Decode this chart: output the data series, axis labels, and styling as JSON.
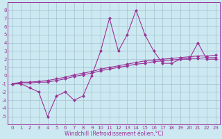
{
  "xlabel": "Windchill (Refroidissement éolien,°C)",
  "x_values": [
    0,
    1,
    2,
    3,
    4,
    5,
    6,
    7,
    8,
    9,
    10,
    11,
    12,
    13,
    14,
    15,
    16,
    17,
    18,
    19,
    20,
    21,
    22,
    23
  ],
  "line1_y": [
    -1,
    -1,
    -1.5,
    -2,
    -5,
    -2.5,
    -2,
    -3,
    -2.5,
    0,
    3,
    7,
    3,
    5,
    8,
    5,
    3,
    1.5,
    1.5,
    2,
    2,
    4,
    2,
    2
  ],
  "line2_y": [
    -1,
    -0.8,
    -0.8,
    -0.7,
    -0.6,
    -0.4,
    -0.2,
    0.1,
    0.3,
    0.5,
    0.8,
    1.0,
    1.2,
    1.4,
    1.6,
    1.8,
    1.9,
    2.0,
    2.1,
    2.2,
    2.3,
    2.4,
    2.4,
    2.5
  ],
  "line3_y": [
    -1,
    -0.9,
    -0.9,
    -0.8,
    -0.8,
    -0.6,
    -0.4,
    -0.1,
    0.1,
    0.3,
    0.6,
    0.8,
    1.0,
    1.2,
    1.4,
    1.5,
    1.7,
    1.8,
    1.9,
    2.0,
    2.1,
    2.1,
    2.2,
    2.2
  ],
  "color": "#993399",
  "bg_color": "#cce8f0",
  "grid_color": "#99bbcc",
  "ylim": [
    -6,
    9
  ],
  "xlim": [
    -0.5,
    23.5
  ],
  "yticks": [
    8,
    7,
    6,
    5,
    4,
    3,
    2,
    1,
    0,
    -1,
    -2,
    -3,
    -4,
    -5
  ],
  "xticks": [
    0,
    1,
    2,
    3,
    4,
    5,
    6,
    7,
    8,
    9,
    10,
    11,
    12,
    13,
    14,
    15,
    16,
    17,
    18,
    19,
    20,
    21,
    22,
    23
  ],
  "markersize": 2.5,
  "linewidth": 0.8,
  "tick_fontsize": 5,
  "xlabel_fontsize": 5.5
}
